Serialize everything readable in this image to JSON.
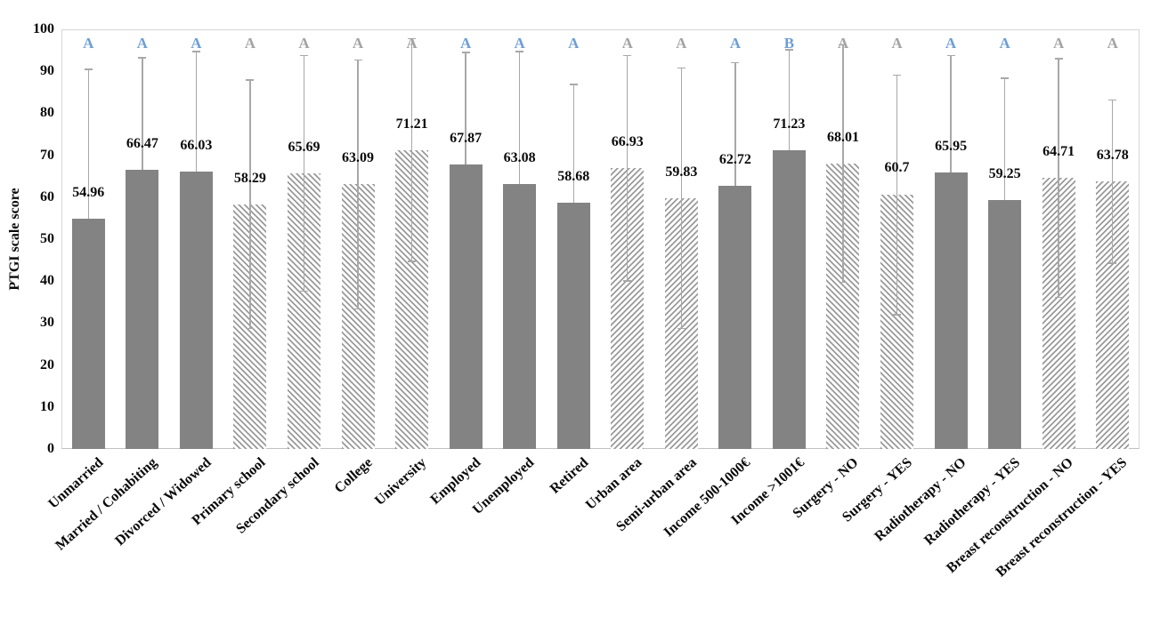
{
  "colors": {
    "bar_solid": "#838383",
    "hatch_line": "#9a9a9a",
    "hatch_bg": "#ffffff",
    "error_bar": "#a8a8a8",
    "letter_blue": "#6d9ed6",
    "letter_gray": "#a3a3a3",
    "axis_text": "#0a0a0a"
  },
  "chart_data": {
    "type": "bar",
    "title": "",
    "xlabel": "",
    "ylabel": "PTGI scale score",
    "ylim": [
      0,
      100
    ],
    "yticks": [
      0,
      10,
      20,
      30,
      40,
      50,
      60,
      70,
      80,
      90,
      100
    ],
    "grid": false,
    "legend_position": "none",
    "categories": [
      "Unmarried",
      "Married / Cohabiting",
      "Divorced / Widowed",
      "Primary school",
      "Secondary school",
      "College",
      "University",
      "Employed",
      "Unemployed",
      "Retired",
      "Urban area",
      "Semi-urban area",
      "Income 500-1000€",
      "Income >1001€",
      "Surgery - NO",
      "Surgery - YES",
      "Radiotherapy - NO",
      "Radiotherapy - YES",
      "Breast reconstruction - NO",
      "Breast reconstruction - YES"
    ],
    "values": [
      54.96,
      66.47,
      66.03,
      58.29,
      65.69,
      63.09,
      71.21,
      67.87,
      63.08,
      58.68,
      66.93,
      59.83,
      62.72,
      71.23,
      68.01,
      60.7,
      65.95,
      59.25,
      64.71,
      63.78
    ],
    "value_labels": [
      "54.96",
      "66.47",
      "66.03",
      "58.29",
      "65.69",
      "63.09",
      "71.21",
      "67.87",
      "63.08",
      "58.68",
      "66.93",
      "59.83",
      "62.72",
      "71.23",
      "68.01",
      "60.7",
      "65.95",
      "59.25",
      "64.71",
      "63.78"
    ],
    "bar_styles": [
      "solid",
      "solid",
      "solid",
      "hatch-back",
      "hatch-back",
      "hatch-back",
      "hatch-back",
      "solid",
      "solid",
      "solid",
      "hatch-fwd",
      "hatch-fwd",
      "solid",
      "solid",
      "hatch-back",
      "hatch-back",
      "solid",
      "solid",
      "hatch-fwd",
      "hatch-fwd"
    ],
    "sig_letters": [
      "A",
      "A",
      "A",
      "A",
      "A",
      "A",
      "A",
      "A",
      "A",
      "A",
      "A",
      "A",
      "A",
      "B",
      "A",
      "A",
      "A",
      "A",
      "A",
      "A"
    ],
    "sig_letter_colors": [
      "blue",
      "blue",
      "blue",
      "gray",
      "gray",
      "gray",
      "gray",
      "blue",
      "blue",
      "blue",
      "gray",
      "gray",
      "blue",
      "blue",
      "gray",
      "gray",
      "blue",
      "blue",
      "gray",
      "gray"
    ],
    "whisker_high": [
      90.6,
      93.4,
      94.9,
      88.1,
      93.9,
      92.9,
      97.9,
      94.6,
      94.9,
      87.0,
      93.9,
      90.9,
      92.2,
      95.3,
      96.4,
      89.3,
      93.9,
      88.5,
      93.2,
      83.3
    ],
    "whisker_low": [
      null,
      null,
      null,
      28.5,
      37.5,
      33.2,
      44.5,
      null,
      null,
      null,
      39.9,
      28.6,
      null,
      null,
      39.6,
      31.8,
      null,
      null,
      36.0,
      44.1
    ]
  }
}
